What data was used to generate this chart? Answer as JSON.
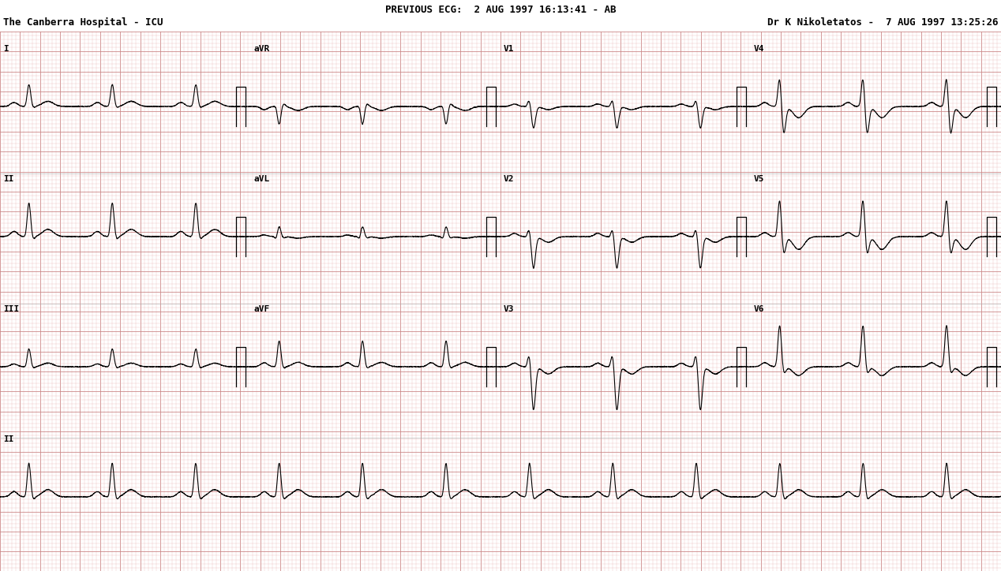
{
  "title_line1": "PREVIOUS ECG:  2 AUG 1997 16:13:41 - AB",
  "title_line2_left": "The Canberra Hospital - ICU",
  "title_line2_right": "Dr K Nikoletatos -  7 AUG 1997 13:25:26",
  "bg_color": "#ffffff",
  "grid_minor_color": "#d0b0b0",
  "grid_major_color": "#b08080",
  "ecg_color": "#000000",
  "sample_rate": 500,
  "heart_rate": 72,
  "header_fontsize": 9,
  "label_fontsize": 9
}
